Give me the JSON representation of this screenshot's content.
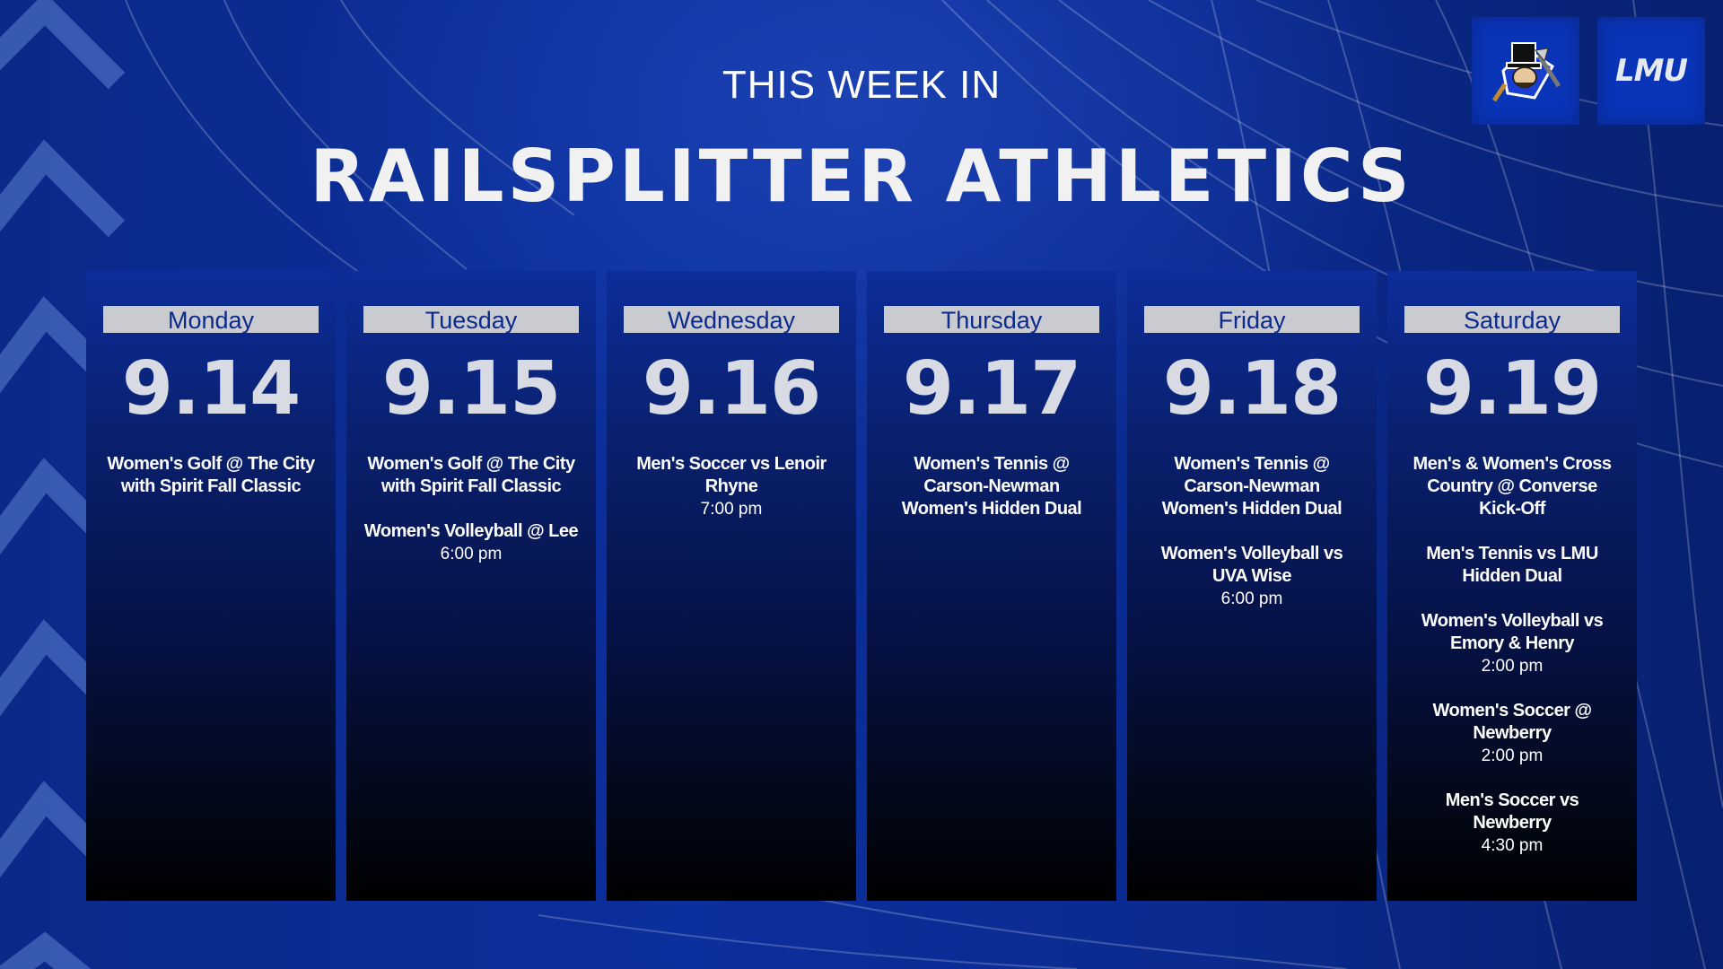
{
  "header": {
    "small_title": "THIS WEEK IN",
    "big_title": "RAILSPLITTER ATHLETICS"
  },
  "logos": {
    "mascot_icon": "railsplitter-mascot-icon",
    "lmu_text": "LMU"
  },
  "colors": {
    "background": "#0b2f9c",
    "day_label_bg": "#c9cbd1",
    "day_label_text": "#0b2a8c",
    "date_text": "#d8dbe3"
  },
  "days": [
    {
      "day": "Monday",
      "date": "9.14",
      "events": [
        {
          "name": "Women's Golf @ The City with Spirit Fall Classic",
          "time": ""
        }
      ]
    },
    {
      "day": "Tuesday",
      "date": "9.15",
      "events": [
        {
          "name": "Women's Golf @ The City with Spirit Fall Classic",
          "time": ""
        },
        {
          "name": "Women's Volleyball @ Lee",
          "time": "6:00 pm"
        }
      ]
    },
    {
      "day": "Wednesday",
      "date": "9.16",
      "events": [
        {
          "name": "Men's Soccer vs Lenoir Rhyne",
          "time": "7:00 pm"
        }
      ]
    },
    {
      "day": "Thursday",
      "date": "9.17",
      "events": [
        {
          "name": "Women's Tennis @ Carson-Newman Women's Hidden Dual",
          "time": ""
        }
      ]
    },
    {
      "day": "Friday",
      "date": "9.18",
      "events": [
        {
          "name": "Women's Tennis @ Carson-Newman Women's Hidden Dual",
          "time": ""
        },
        {
          "name": "Women's Volleyball vs UVA Wise",
          "time": "6:00 pm"
        }
      ]
    },
    {
      "day": "Saturday",
      "date": "9.19",
      "events": [
        {
          "name": "Men's & Women's Cross Country @ Converse Kick-Off",
          "time": ""
        },
        {
          "name": "Men's Tennis vs LMU Hidden Dual",
          "time": ""
        },
        {
          "name": "Women's Volleyball vs Emory & Henry",
          "time": "2:00 pm"
        },
        {
          "name": "Women's Soccer @ Newberry",
          "time": "2:00 pm"
        },
        {
          "name": "Men's Soccer vs Newberry",
          "time": "4:30 pm"
        }
      ]
    }
  ]
}
